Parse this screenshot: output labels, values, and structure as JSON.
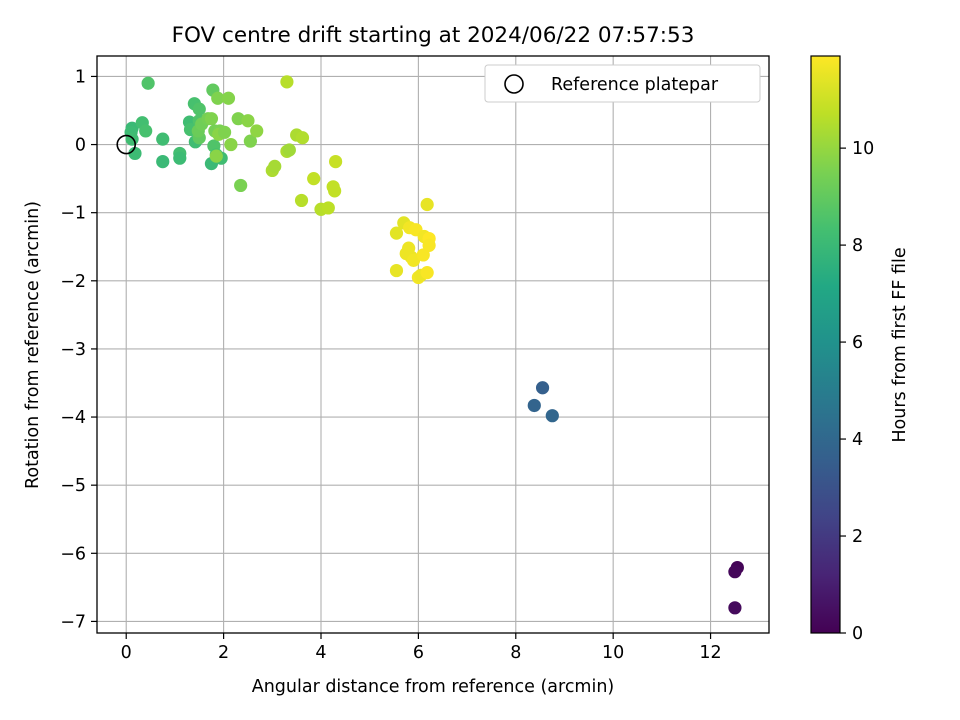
{
  "chart_data": {
    "type": "scatter",
    "title": "FOV centre drift starting at 2024/06/22 07:57:53",
    "xlabel": "Angular distance from reference (arcmin)",
    "ylabel": "Rotation from reference (arcmin)",
    "xlim": [
      -0.6,
      13.2
    ],
    "ylim": [
      -7.17,
      1.3
    ],
    "xticks": [
      0,
      2,
      4,
      6,
      8,
      10,
      12
    ],
    "yticks": [
      1,
      0,
      -1,
      -2,
      -3,
      -4,
      -5,
      -6,
      -7
    ],
    "grid": true,
    "legend": {
      "label": "Reference platepar",
      "position": "top-right",
      "marker": "hollow-circle",
      "x": 0,
      "y": 0
    },
    "colorbar": {
      "label": "Hours from first FF file",
      "min": 0,
      "max": 11.9,
      "ticks": [
        0,
        2,
        4,
        6,
        8,
        10
      ],
      "colormap": "viridis"
    },
    "points": [
      {
        "x": 12.55,
        "y": -6.21,
        "hours": 0.1
      },
      {
        "x": 12.5,
        "y": -6.27,
        "hours": 0.2
      },
      {
        "x": 12.5,
        "y": -6.8,
        "hours": 0.3
      },
      {
        "x": 8.55,
        "y": -3.57,
        "hours": 3.6
      },
      {
        "x": 8.38,
        "y": -3.83,
        "hours": 3.8
      },
      {
        "x": 8.75,
        "y": -3.98,
        "hours": 3.9
      },
      {
        "x": 0.12,
        "y": 0.24,
        "hours": 8.0
      },
      {
        "x": 0.1,
        "y": 0.18,
        "hours": 8.1
      },
      {
        "x": 0.12,
        "y": 0.08,
        "hours": 8.2
      },
      {
        "x": 0.18,
        "y": -0.13,
        "hours": 8.1
      },
      {
        "x": 0.33,
        "y": 0.32,
        "hours": 8.3
      },
      {
        "x": 0.4,
        "y": 0.2,
        "hours": 8.4
      },
      {
        "x": 0.45,
        "y": 0.9,
        "hours": 8.6
      },
      {
        "x": 0.75,
        "y": -0.25,
        "hours": 8.0
      },
      {
        "x": 0.75,
        "y": 0.08,
        "hours": 8.2
      },
      {
        "x": 1.1,
        "y": -0.13,
        "hours": 8.3
      },
      {
        "x": 1.1,
        "y": -0.2,
        "hours": 8.1
      },
      {
        "x": 1.3,
        "y": 0.33,
        "hours": 8.2
      },
      {
        "x": 1.32,
        "y": 0.22,
        "hours": 8.4
      },
      {
        "x": 1.42,
        "y": 0.04,
        "hours": 8.2
      },
      {
        "x": 1.4,
        "y": 0.6,
        "hours": 8.4
      },
      {
        "x": 1.5,
        "y": 0.52,
        "hours": 8.6
      },
      {
        "x": 1.5,
        "y": 0.35,
        "hours": 8.6
      },
      {
        "x": 1.75,
        "y": -0.28,
        "hours": 8.0
      },
      {
        "x": 1.78,
        "y": 0.8,
        "hours": 9.0
      },
      {
        "x": 1.8,
        "y": -0.02,
        "hours": 8.6
      },
      {
        "x": 1.85,
        "y": -0.15,
        "hours": 8.4
      },
      {
        "x": 1.95,
        "y": -0.2,
        "hours": 8.2
      },
      {
        "x": 1.5,
        "y": 0.1,
        "hours": 9.0
      },
      {
        "x": 1.48,
        "y": 0.2,
        "hours": 9.2
      },
      {
        "x": 1.55,
        "y": 0.3,
        "hours": 9.3
      },
      {
        "x": 1.68,
        "y": 0.38,
        "hours": 9.4
      },
      {
        "x": 1.75,
        "y": 0.38,
        "hours": 9.6
      },
      {
        "x": 1.82,
        "y": 0.2,
        "hours": 9.4
      },
      {
        "x": 1.88,
        "y": 0.68,
        "hours": 9.6
      },
      {
        "x": 1.92,
        "y": 0.2,
        "hours": 9.5
      },
      {
        "x": 1.9,
        "y": 0.15,
        "hours": 9.8
      },
      {
        "x": 1.85,
        "y": -0.17,
        "hours": 9.8
      },
      {
        "x": 2.02,
        "y": 0.18,
        "hours": 9.6
      },
      {
        "x": 2.1,
        "y": 0.68,
        "hours": 9.7
      },
      {
        "x": 2.15,
        "y": 0.0,
        "hours": 9.8
      },
      {
        "x": 2.3,
        "y": 0.38,
        "hours": 9.6
      },
      {
        "x": 2.35,
        "y": -0.6,
        "hours": 9.5
      },
      {
        "x": 2.5,
        "y": 0.35,
        "hours": 9.8
      },
      {
        "x": 2.55,
        "y": 0.05,
        "hours": 9.6
      },
      {
        "x": 2.68,
        "y": 0.2,
        "hours": 9.9
      },
      {
        "x": 3.0,
        "y": -0.38,
        "hours": 10.4
      },
      {
        "x": 3.05,
        "y": -0.32,
        "hours": 10.3
      },
      {
        "x": 3.3,
        "y": 0.92,
        "hours": 10.6
      },
      {
        "x": 3.3,
        "y": -0.1,
        "hours": 10.4
      },
      {
        "x": 3.35,
        "y": -0.08,
        "hours": 10.2
      },
      {
        "x": 3.5,
        "y": 0.14,
        "hours": 10.4
      },
      {
        "x": 3.62,
        "y": 0.1,
        "hours": 10.5
      },
      {
        "x": 3.6,
        "y": -0.82,
        "hours": 10.6
      },
      {
        "x": 3.85,
        "y": -0.5,
        "hours": 10.8
      },
      {
        "x": 4.0,
        "y": -0.95,
        "hours": 10.6
      },
      {
        "x": 4.15,
        "y": -0.93,
        "hours": 10.7
      },
      {
        "x": 4.25,
        "y": -0.62,
        "hours": 10.8
      },
      {
        "x": 4.28,
        "y": -0.68,
        "hours": 10.8
      },
      {
        "x": 4.3,
        "y": -0.25,
        "hours": 10.9
      },
      {
        "x": 5.55,
        "y": -1.3,
        "hours": 11.4
      },
      {
        "x": 5.55,
        "y": -1.85,
        "hours": 11.5
      },
      {
        "x": 5.7,
        "y": -1.15,
        "hours": 11.4
      },
      {
        "x": 5.75,
        "y": -1.6,
        "hours": 11.6
      },
      {
        "x": 5.8,
        "y": -1.52,
        "hours": 11.6
      },
      {
        "x": 5.82,
        "y": -1.22,
        "hours": 11.7
      },
      {
        "x": 5.85,
        "y": -1.65,
        "hours": 11.6
      },
      {
        "x": 5.9,
        "y": -1.7,
        "hours": 11.7
      },
      {
        "x": 5.95,
        "y": -1.25,
        "hours": 11.8
      },
      {
        "x": 6.0,
        "y": -1.95,
        "hours": 11.7
      },
      {
        "x": 6.05,
        "y": -1.92,
        "hours": 11.6
      },
      {
        "x": 6.1,
        "y": -1.62,
        "hours": 11.8
      },
      {
        "x": 6.12,
        "y": -1.35,
        "hours": 11.7
      },
      {
        "x": 6.18,
        "y": -0.88,
        "hours": 11.5
      },
      {
        "x": 6.18,
        "y": -1.88,
        "hours": 11.8
      },
      {
        "x": 6.22,
        "y": -1.38,
        "hours": 11.9
      },
      {
        "x": 6.22,
        "y": -1.48,
        "hours": 11.8
      }
    ]
  }
}
